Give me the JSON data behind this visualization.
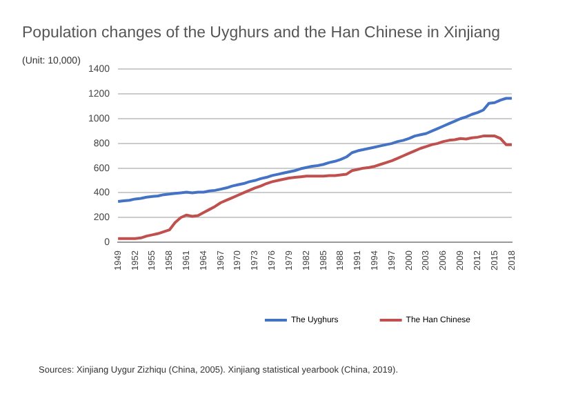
{
  "chart_data": {
    "type": "line",
    "title": "Population changes of the Uyghurs and the Han Chinese in Xinjiang",
    "ylabel": "(Unit: 10,000)",
    "categories": [
      "1949",
      null,
      null,
      "1952",
      null,
      null,
      "1955",
      null,
      null,
      "1958",
      null,
      null,
      "1961",
      null,
      null,
      "1964",
      null,
      null,
      "1967",
      null,
      null,
      "1970",
      null,
      null,
      "1973",
      null,
      null,
      "1976",
      null,
      null,
      "1979",
      null,
      null,
      "1982",
      null,
      null,
      "1985",
      null,
      null,
      "1988",
      null,
      null,
      "1991",
      null,
      null,
      "1994",
      null,
      null,
      "1997",
      null,
      null,
      "2000",
      null,
      null,
      "2003",
      null,
      null,
      "2006",
      null,
      null,
      "2009",
      null,
      null,
      "2012",
      null,
      null,
      "2015",
      null,
      null,
      "2018"
    ],
    "series": [
      {
        "name": "The Uyghurs",
        "color": "#4472c4",
        "values": [
          330,
          335,
          340,
          350,
          355,
          365,
          370,
          375,
          385,
          390,
          395,
          400,
          405,
          400,
          405,
          405,
          415,
          420,
          430,
          440,
          455,
          465,
          475,
          490,
          500,
          515,
          525,
          540,
          550,
          560,
          570,
          580,
          595,
          605,
          615,
          620,
          630,
          645,
          655,
          670,
          690,
          725,
          740,
          750,
          760,
          770,
          780,
          790,
          800,
          815,
          825,
          840,
          860,
          870,
          880,
          900,
          920,
          940,
          960,
          980,
          1000,
          1015,
          1035,
          1050,
          1070,
          1125,
          1130,
          1150,
          1165,
          1165
        ]
      },
      {
        "name": "The Han Chinese",
        "color": "#c0504d",
        "values": [
          30,
          30,
          30,
          30,
          35,
          50,
          60,
          70,
          85,
          100,
          160,
          200,
          220,
          210,
          215,
          240,
          265,
          290,
          320,
          340,
          360,
          380,
          400,
          420,
          440,
          455,
          475,
          490,
          500,
          510,
          520,
          525,
          530,
          535,
          535,
          535,
          535,
          540,
          540,
          545,
          550,
          580,
          590,
          600,
          605,
          615,
          630,
          645,
          660,
          680,
          700,
          720,
          740,
          760,
          775,
          790,
          800,
          815,
          825,
          830,
          840,
          835,
          845,
          850,
          860,
          860,
          860,
          840,
          790,
          790
        ]
      }
    ],
    "ylim": [
      0,
      1400
    ],
    "yticks": [
      0,
      200,
      400,
      600,
      800,
      1000,
      1200,
      1400
    ],
    "grid": "y",
    "legend": "bottom right",
    "line_style": "solid",
    "marker": "none",
    "annotations": [
      "Sources: Xinjiang Uygur Zizhiqu (China, 2005).  Xinjiang statistical yearbook (China, 2019)."
    ]
  }
}
